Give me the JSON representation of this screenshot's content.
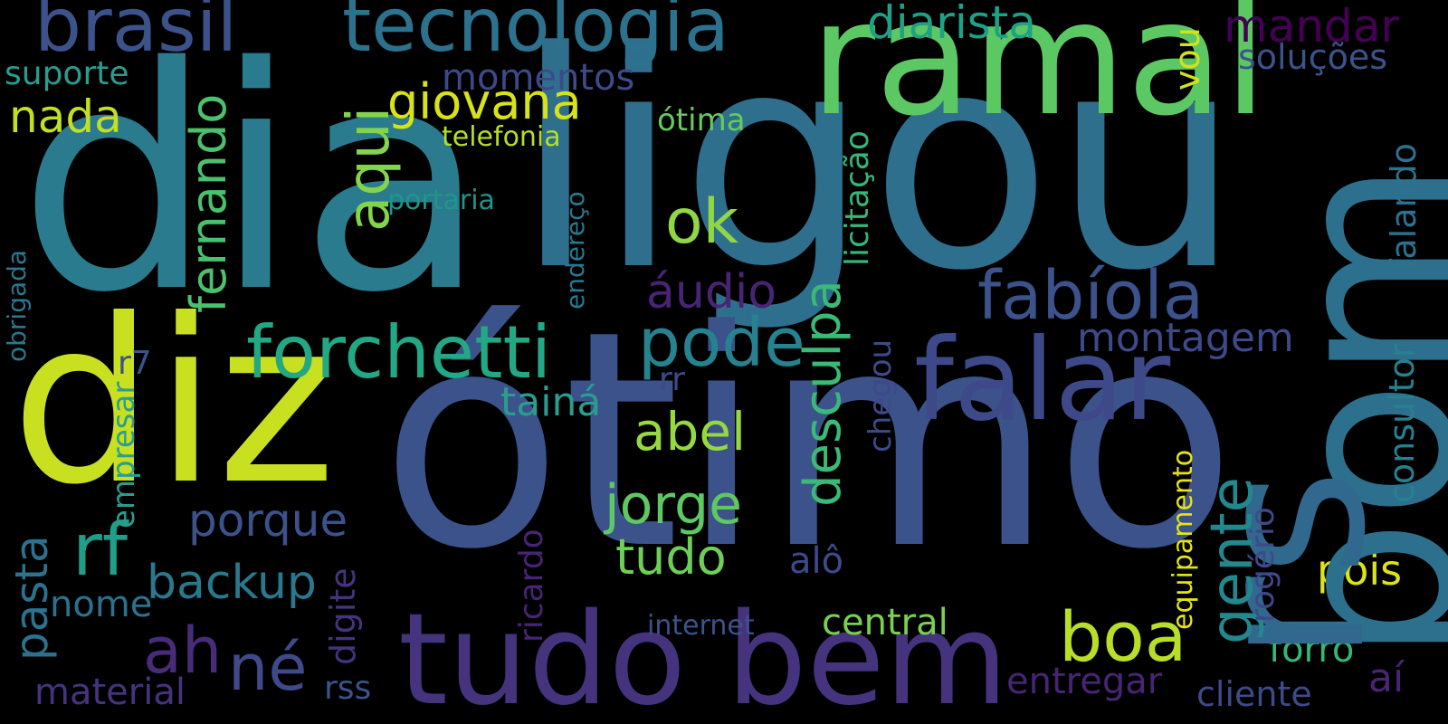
{
  "background": "#000000",
  "words": [
    {
      "text": "dia",
      "color": "#2a7b8e",
      "orientation": "horizontal"
    },
    {
      "text": "ligou",
      "color": "#2f6f8e",
      "orientation": "horizontal"
    },
    {
      "text": "ótimo",
      "color": "#3b528b",
      "orientation": "horizontal"
    },
    {
      "text": "diz",
      "color": "#c8e020",
      "orientation": "horizontal"
    },
    {
      "text": "bom",
      "color": "#2d708e",
      "orientation": "vertical"
    },
    {
      "text": "rs",
      "color": "#31688e",
      "orientation": "vertical"
    },
    {
      "text": "ramal",
      "color": "#5cc863",
      "orientation": "horizontal"
    },
    {
      "text": "tudo bem",
      "color": "#46337e",
      "orientation": "horizontal"
    },
    {
      "text": "falar",
      "color": "#3e4989",
      "orientation": "horizontal"
    },
    {
      "text": "brasil",
      "color": "#3b528b",
      "orientation": "horizontal"
    },
    {
      "text": "tecnologia",
      "color": "#2c728e",
      "orientation": "horizontal"
    },
    {
      "text": "forchetti",
      "color": "#22a884",
      "orientation": "horizontal"
    },
    {
      "text": "fabíola",
      "color": "#3b528b",
      "orientation": "horizontal"
    },
    {
      "text": "pode",
      "color": "#26828e",
      "orientation": "horizontal"
    },
    {
      "text": "rf",
      "color": "#1f9e89",
      "orientation": "horizontal"
    },
    {
      "text": "ok",
      "color": "#8fd744",
      "orientation": "horizontal"
    },
    {
      "text": "giovana",
      "color": "#d8e219",
      "orientation": "horizontal"
    },
    {
      "text": "aqui",
      "color": "#84d44b",
      "orientation": "vertical"
    },
    {
      "text": "desculpa",
      "color": "#3aba76",
      "orientation": "vertical"
    },
    {
      "text": "gente",
      "color": "#23888e",
      "orientation": "vertical"
    },
    {
      "text": "boa",
      "color": "#b8de29",
      "orientation": "horizontal"
    },
    {
      "text": "ah",
      "color": "#472c7a",
      "orientation": "horizontal"
    },
    {
      "text": "né",
      "color": "#3e4a89",
      "orientation": "horizontal"
    },
    {
      "text": "jorge",
      "color": "#5ec962",
      "orientation": "horizontal"
    },
    {
      "text": "tudo",
      "color": "#6ece58",
      "orientation": "horizontal"
    },
    {
      "text": "abel",
      "color": "#95d840",
      "orientation": "horizontal"
    },
    {
      "text": "porque",
      "color": "#3b528b",
      "orientation": "horizontal"
    },
    {
      "text": "backup",
      "color": "#2a788e",
      "orientation": "horizontal"
    },
    {
      "text": "fernando",
      "color": "#4ac16d",
      "orientation": "vertical"
    },
    {
      "text": "nada",
      "color": "#c2df23",
      "orientation": "horizontal"
    },
    {
      "text": "áudio",
      "color": "#482475",
      "orientation": "horizontal"
    },
    {
      "text": "pasta",
      "color": "#2c728e",
      "orientation": "vertical"
    },
    {
      "text": "diarista",
      "color": "#1fa187",
      "orientation": "horizontal"
    },
    {
      "text": "mandar",
      "color": "#440154",
      "orientation": "horizontal"
    },
    {
      "text": "montagem",
      "color": "#3e4989",
      "orientation": "horizontal"
    },
    {
      "text": "consultor",
      "color": "#27808e",
      "orientation": "vertical"
    },
    {
      "text": "falando",
      "color": "#2c728e",
      "orientation": "vertical"
    },
    {
      "text": "soluções",
      "color": "#3b528b",
      "orientation": "horizontal"
    },
    {
      "text": "momentos",
      "color": "#3e4989",
      "orientation": "horizontal"
    },
    {
      "text": "suporte",
      "color": "#2a9d8f",
      "orientation": "horizontal"
    },
    {
      "text": "telefonia",
      "color": "#b5de2b",
      "orientation": "horizontal"
    },
    {
      "text": "ótima",
      "color": "#65cb5e",
      "orientation": "horizontal"
    },
    {
      "text": "vou",
      "color": "#d2e21b",
      "orientation": "vertical"
    },
    {
      "text": "licitação",
      "color": "#35b779",
      "orientation": "vertical"
    },
    {
      "text": "endereço",
      "color": "#2a788e",
      "orientation": "vertical"
    },
    {
      "text": "portaria",
      "color": "#1f968b",
      "orientation": "horizontal"
    },
    {
      "text": "obrigada",
      "color": "#2a788e",
      "orientation": "vertical"
    },
    {
      "text": "r7",
      "color": "#3b528b",
      "orientation": "horizontal"
    },
    {
      "text": "empresar",
      "color": "#2a9d8f",
      "orientation": "vertical"
    },
    {
      "text": "tainá",
      "color": "#2a9d8f",
      "orientation": "horizontal"
    },
    {
      "text": "rr",
      "color": "#3e4989",
      "orientation": "horizontal"
    },
    {
      "text": "chegou",
      "color": "#3e4989",
      "orientation": "vertical"
    },
    {
      "text": "equipamento",
      "color": "#e5e419",
      "orientation": "vertical"
    },
    {
      "text": "rogério",
      "color": "#3e4989",
      "orientation": "vertical"
    },
    {
      "text": "pois",
      "color": "#dde318",
      "orientation": "horizontal"
    },
    {
      "text": "forro",
      "color": "#35b779",
      "orientation": "horizontal"
    },
    {
      "text": "central",
      "color": "#7ad151",
      "orientation": "horizontal"
    },
    {
      "text": "alô",
      "color": "#3e4989",
      "orientation": "horizontal"
    },
    {
      "text": "ricardo",
      "color": "#482475",
      "orientation": "vertical"
    },
    {
      "text": "digite",
      "color": "#46337e",
      "orientation": "vertical"
    },
    {
      "text": "nome",
      "color": "#2c728e",
      "orientation": "horizontal"
    },
    {
      "text": "internet",
      "color": "#3b528b",
      "orientation": "horizontal"
    },
    {
      "text": "material",
      "color": "#46337e",
      "orientation": "horizontal"
    },
    {
      "text": "rss",
      "color": "#3b528b",
      "orientation": "horizontal"
    },
    {
      "text": "entregar",
      "color": "#482475",
      "orientation": "horizontal"
    },
    {
      "text": "aí",
      "color": "#482475",
      "orientation": "horizontal"
    },
    {
      "text": "cliente",
      "color": "#3e4989",
      "orientation": "horizontal"
    }
  ]
}
